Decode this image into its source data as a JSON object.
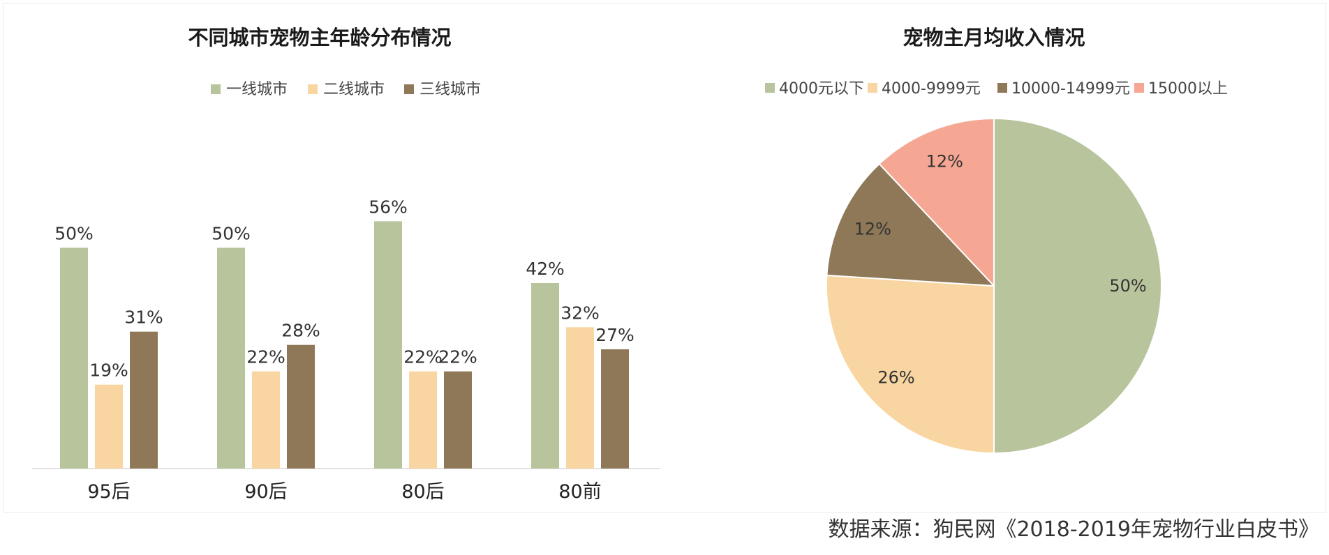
{
  "chart_data": [
    {
      "type": "bar",
      "title": "不同城市宠物主年龄分布情况",
      "categories": [
        "95后",
        "90后",
        "80后",
        "80前"
      ],
      "series": [
        {
          "name": "一线城市",
          "values": [
            50,
            50,
            56,
            42
          ],
          "labels": [
            "50%",
            "50%",
            "56%",
            "42%"
          ],
          "color": "#b8c49c"
        },
        {
          "name": "二线城市",
          "values": [
            19,
            22,
            22,
            32
          ],
          "labels": [
            "19%",
            "22%",
            "22%",
            "32%"
          ],
          "color": "#f8d5a1"
        },
        {
          "name": "三线城市",
          "values": [
            31,
            28,
            22,
            27
          ],
          "labels": [
            "31%",
            "28%",
            "22%",
            "27%"
          ],
          "color": "#8e7858"
        }
      ],
      "unit": "%",
      "ylim": [
        0,
        60
      ],
      "grid": false,
      "legend": "top-center"
    },
    {
      "type": "pie",
      "title": "宠物主月均收入情况",
      "slices": [
        {
          "label": "4000元以下",
          "value": 50,
          "text": "50%",
          "color": "#b8c49c"
        },
        {
          "label": "4000-9999元",
          "value": 26,
          "text": "26%",
          "color": "#f8d5a1"
        },
        {
          "label": "10000-14999元",
          "value": 12,
          "text": "12%",
          "color": "#8e7858"
        },
        {
          "label": "15000以上",
          "value": 12,
          "text": "12%",
          "color": "#f6a793"
        }
      ],
      "legend": "top-center"
    }
  ],
  "source": "数据来源：狗民网《2018-2019年宠物行业白皮书》"
}
